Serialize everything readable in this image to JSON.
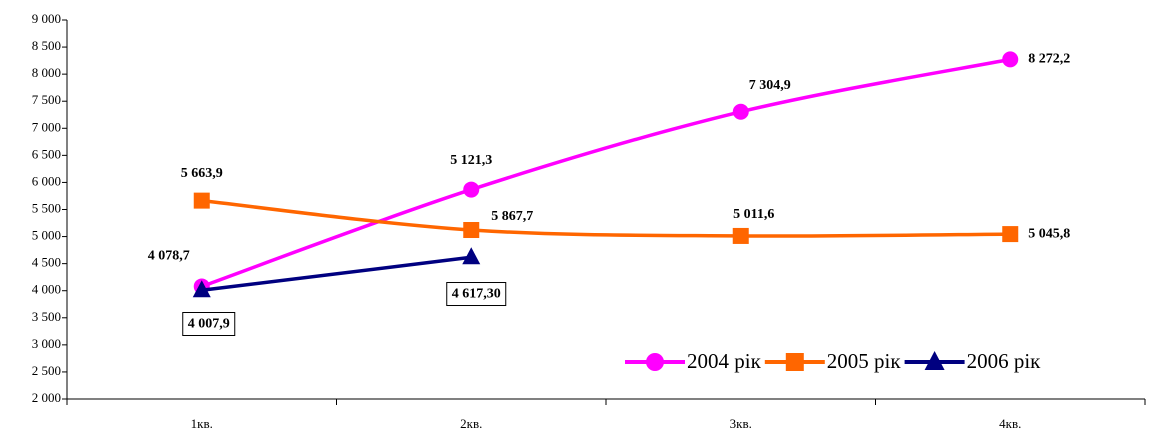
{
  "chart_data": {
    "type": "line",
    "categories": [
      "1кв.",
      "2кв.",
      "3кв.",
      "4кв."
    ],
    "ylim": [
      2000,
      9000
    ],
    "yticks": [
      {
        "value": 2000,
        "label": "2 000"
      },
      {
        "value": 2500,
        "label": "2 500"
      },
      {
        "value": 3000,
        "label": "3 000"
      },
      {
        "value": 3500,
        "label": "3 500"
      },
      {
        "value": 4000,
        "label": "4 000"
      },
      {
        "value": 4500,
        "label": "4 500"
      },
      {
        "value": 5000,
        "label": "5 000"
      },
      {
        "value": 5500,
        "label": "5 500"
      },
      {
        "value": 6000,
        "label": "6 000"
      },
      {
        "value": 6500,
        "label": "6 500"
      },
      {
        "value": 7000,
        "label": "7 000"
      },
      {
        "value": 7500,
        "label": "7 500"
      },
      {
        "value": 8000,
        "label": "8 000"
      },
      {
        "value": 8500,
        "label": "8 500"
      },
      {
        "value": 9000,
        "label": "9 000"
      }
    ],
    "legend": "bottom-right",
    "series": [
      {
        "name": "2004 рік",
        "color": "#ff00ff",
        "marker": "circle",
        "smooth": true,
        "values": [
          4078.7,
          5867.7,
          7304.9,
          8272.2
        ],
        "value_labels": [
          "4 078,7",
          "5 867,7",
          "7 304,9",
          "8 272,2"
        ]
      },
      {
        "name": "2005 рік",
        "color": "#ff6600",
        "marker": "square",
        "smooth": true,
        "values": [
          5663.9,
          5121.3,
          5011.6,
          5045.8
        ],
        "value_labels": [
          "5 663,9",
          "5 121,3",
          "5 011,6",
          "5 045,8"
        ]
      },
      {
        "name": "2006 рік",
        "color": "#000080",
        "marker": "triangle",
        "smooth": false,
        "values": [
          4007.9,
          4617.3,
          null,
          null
        ],
        "value_labels": [
          "4 007,9",
          "4 617,30",
          null,
          null
        ]
      }
    ]
  }
}
